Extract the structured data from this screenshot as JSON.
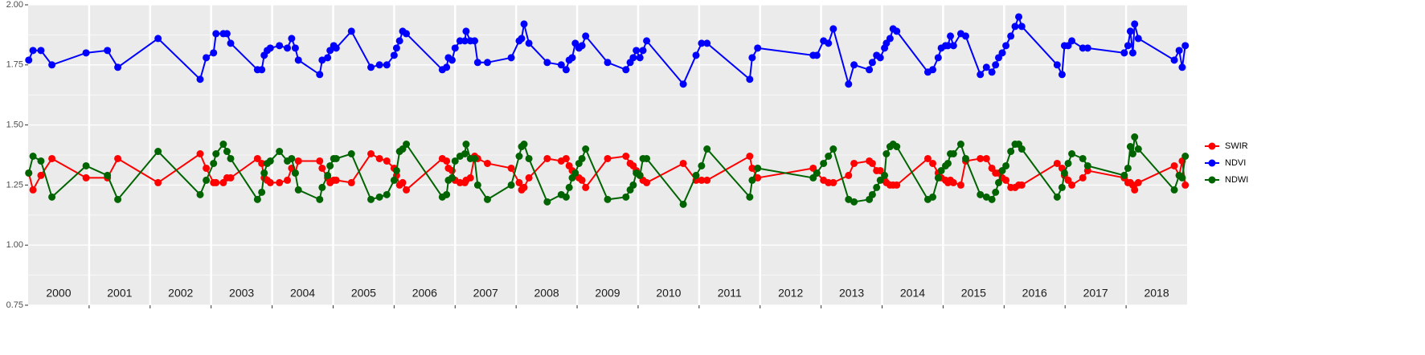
{
  "chart_data": {
    "type": "line",
    "x": [
      2000.01,
      2000.08,
      2000.21,
      2000.39,
      2000.95,
      2001.3,
      2001.47,
      2002.13,
      2002.82,
      2002.92,
      2003.04,
      2003.08,
      2003.2,
      2003.26,
      2003.32,
      2003.76,
      2003.83,
      2003.87,
      2003.92,
      2003.97,
      2004.12,
      2004.25,
      2004.32,
      2004.38,
      2004.43,
      2004.78,
      2004.82,
      2004.91,
      2004.95,
      2005.01,
      2005.05,
      2005.3,
      2005.62,
      2005.76,
      2005.88,
      2006.0,
      2006.04,
      2006.09,
      2006.14,
      2006.2,
      2006.79,
      2006.86,
      2006.89,
      2006.95,
      2007.0,
      2007.08,
      2007.16,
      2007.18,
      2007.25,
      2007.32,
      2007.37,
      2007.53,
      2007.92,
      2008.05,
      2008.09,
      2008.13,
      2008.21,
      2008.51,
      2008.74,
      2008.82,
      2008.87,
      2008.92,
      2008.97,
      2009.03,
      2009.08,
      2009.14,
      2009.5,
      2009.8,
      2009.87,
      2009.92,
      2009.97,
      2010.03,
      2010.08,
      2010.14,
      2010.74,
      2010.95,
      2011.04,
      2011.13,
      2011.83,
      2011.87,
      2011.96,
      2012.87,
      2012.93,
      2013.04,
      2013.12,
      2013.2,
      2013.45,
      2013.54,
      2013.79,
      2013.84,
      2013.91,
      2013.97,
      2014.04,
      2014.07,
      2014.13,
      2014.18,
      2014.24,
      2014.75,
      2014.83,
      2014.92,
      2014.97,
      2015.04,
      2015.08,
      2015.12,
      2015.17,
      2015.29,
      2015.37,
      2015.61,
      2015.71,
      2015.8,
      2015.86,
      2015.91,
      2015.97,
      2016.03,
      2016.11,
      2016.18,
      2016.24,
      2016.29,
      2016.87,
      2016.95,
      2016.99,
      2017.05,
      2017.11,
      2017.29,
      2017.37,
      2017.97,
      2018.03,
      2018.07,
      2018.11,
      2018.14,
      2018.2,
      2018.79,
      2018.87,
      2018.92,
      2018.97
    ],
    "series": [
      {
        "name": "SWIR",
        "color": "#ff0000",
        "values": [
          1.3,
          1.23,
          1.29,
          1.36,
          1.28,
          1.28,
          1.36,
          1.26,
          1.38,
          1.32,
          1.26,
          1.26,
          1.26,
          1.28,
          1.28,
          1.36,
          1.34,
          1.28,
          1.27,
          1.26,
          1.26,
          1.27,
          1.32,
          1.3,
          1.35,
          1.35,
          1.32,
          1.28,
          1.26,
          1.27,
          1.27,
          1.26,
          1.38,
          1.36,
          1.35,
          1.32,
          1.29,
          1.25,
          1.26,
          1.23,
          1.36,
          1.35,
          1.32,
          1.31,
          1.27,
          1.26,
          1.26,
          1.27,
          1.28,
          1.37,
          1.36,
          1.34,
          1.32,
          1.26,
          1.23,
          1.24,
          1.28,
          1.36,
          1.35,
          1.36,
          1.33,
          1.31,
          1.29,
          1.28,
          1.27,
          1.24,
          1.36,
          1.37,
          1.34,
          1.33,
          1.31,
          1.29,
          1.27,
          1.26,
          1.34,
          1.27,
          1.27,
          1.27,
          1.37,
          1.32,
          1.28,
          1.32,
          1.3,
          1.27,
          1.26,
          1.26,
          1.29,
          1.34,
          1.35,
          1.34,
          1.31,
          1.31,
          1.27,
          1.26,
          1.25,
          1.25,
          1.25,
          1.36,
          1.34,
          1.3,
          1.28,
          1.27,
          1.26,
          1.27,
          1.26,
          1.25,
          1.35,
          1.36,
          1.36,
          1.32,
          1.3,
          1.3,
          1.28,
          1.27,
          1.24,
          1.24,
          1.25,
          1.25,
          1.34,
          1.32,
          1.29,
          1.27,
          1.25,
          1.28,
          1.31,
          1.28,
          1.26,
          1.26,
          1.25,
          1.23,
          1.26,
          1.33,
          1.29,
          1.35,
          1.25
        ]
      },
      {
        "name": "NDVI",
        "color": "#0000ff",
        "values": [
          1.77,
          1.81,
          1.81,
          1.75,
          1.8,
          1.81,
          1.74,
          1.86,
          1.69,
          1.78,
          1.8,
          1.88,
          1.88,
          1.88,
          1.84,
          1.73,
          1.73,
          1.79,
          1.81,
          1.82,
          1.83,
          1.82,
          1.86,
          1.82,
          1.77,
          1.71,
          1.77,
          1.78,
          1.81,
          1.83,
          1.82,
          1.89,
          1.74,
          1.75,
          1.75,
          1.79,
          1.82,
          1.85,
          1.89,
          1.88,
          1.73,
          1.74,
          1.78,
          1.77,
          1.82,
          1.85,
          1.85,
          1.89,
          1.85,
          1.85,
          1.76,
          1.76,
          1.78,
          1.85,
          1.86,
          1.92,
          1.84,
          1.76,
          1.75,
          1.73,
          1.77,
          1.78,
          1.84,
          1.82,
          1.83,
          1.87,
          1.76,
          1.73,
          1.76,
          1.78,
          1.81,
          1.78,
          1.81,
          1.85,
          1.67,
          1.79,
          1.84,
          1.84,
          1.69,
          1.78,
          1.82,
          1.79,
          1.79,
          1.85,
          1.84,
          1.9,
          1.67,
          1.75,
          1.73,
          1.76,
          1.79,
          1.78,
          1.82,
          1.84,
          1.86,
          1.9,
          1.89,
          1.72,
          1.73,
          1.78,
          1.82,
          1.83,
          1.83,
          1.87,
          1.83,
          1.88,
          1.87,
          1.71,
          1.74,
          1.72,
          1.75,
          1.78,
          1.8,
          1.83,
          1.87,
          1.91,
          1.95,
          1.91,
          1.75,
          1.71,
          1.83,
          1.83,
          1.85,
          1.82,
          1.82,
          1.8,
          1.83,
          1.89,
          1.8,
          1.92,
          1.86,
          1.77,
          1.81,
          1.74,
          1.83
        ]
      },
      {
        "name": "NDWI",
        "color": "#006400",
        "values": [
          1.3,
          1.37,
          1.35,
          1.2,
          1.33,
          1.29,
          1.19,
          1.39,
          1.21,
          1.27,
          1.34,
          1.38,
          1.42,
          1.39,
          1.36,
          1.19,
          1.22,
          1.3,
          1.34,
          1.35,
          1.39,
          1.35,
          1.36,
          1.3,
          1.23,
          1.19,
          1.24,
          1.29,
          1.33,
          1.36,
          1.36,
          1.38,
          1.19,
          1.2,
          1.21,
          1.27,
          1.31,
          1.39,
          1.4,
          1.42,
          1.2,
          1.21,
          1.27,
          1.28,
          1.35,
          1.37,
          1.38,
          1.42,
          1.36,
          1.36,
          1.25,
          1.19,
          1.25,
          1.37,
          1.41,
          1.42,
          1.36,
          1.18,
          1.21,
          1.2,
          1.24,
          1.28,
          1.3,
          1.34,
          1.36,
          1.4,
          1.19,
          1.2,
          1.23,
          1.25,
          1.3,
          1.29,
          1.36,
          1.36,
          1.17,
          1.29,
          1.33,
          1.4,
          1.2,
          1.27,
          1.32,
          1.28,
          1.3,
          1.34,
          1.37,
          1.4,
          1.19,
          1.18,
          1.19,
          1.21,
          1.24,
          1.27,
          1.29,
          1.38,
          1.41,
          1.42,
          1.41,
          1.19,
          1.2,
          1.28,
          1.31,
          1.33,
          1.34,
          1.38,
          1.38,
          1.42,
          1.36,
          1.21,
          1.2,
          1.19,
          1.22,
          1.26,
          1.31,
          1.33,
          1.39,
          1.42,
          1.42,
          1.4,
          1.2,
          1.24,
          1.3,
          1.34,
          1.38,
          1.36,
          1.33,
          1.29,
          1.32,
          1.41,
          1.38,
          1.45,
          1.4,
          1.23,
          1.29,
          1.28,
          1.37
        ]
      }
    ],
    "xlim": [
      2000,
      2019
    ],
    "xticks": [
      2001,
      2002,
      2003,
      2004,
      2005,
      2006,
      2007,
      2008,
      2009,
      2010,
      2011,
      2012,
      2013,
      2014,
      2015,
      2016,
      2017,
      2018
    ],
    "year_labels": [
      "2000",
      "2001",
      "2002",
      "2003",
      "2004",
      "2005",
      "2006",
      "2007",
      "2008",
      "2009",
      "2010",
      "2011",
      "2012",
      "2013",
      "2014",
      "2015",
      "2016",
      "2017",
      "2018"
    ],
    "ylim": [
      0.75,
      2.0
    ],
    "yticks": [
      0.75,
      {
        "value": 1,
        "label": "1.00"
      },
      1.25,
      {
        "value": 1.5,
        "label": "1.50"
      },
      1.75,
      {
        "value": 2,
        "label": "2.00"
      }
    ],
    "grid": true,
    "legend": "right"
  }
}
